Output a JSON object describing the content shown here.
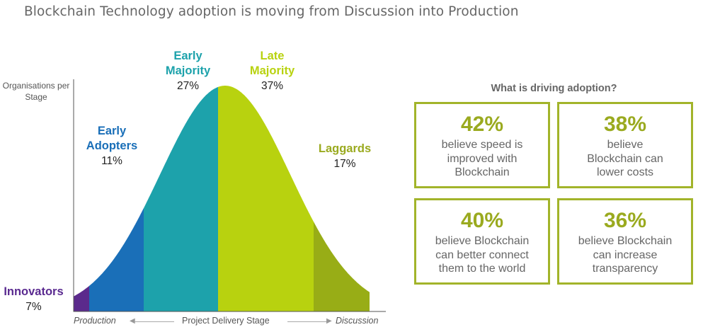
{
  "title": "Blockchain Technology adoption is moving from Discussion into Production",
  "chart_data": {
    "type": "area",
    "title": "Blockchain Technology adoption is moving from Discussion into Production",
    "ylabel": "Organisations per Stage",
    "xlabel": "Project Delivery Stage",
    "x_axis_ends": [
      "Production",
      "Discussion"
    ],
    "categories": [
      "Innovators",
      "Early Adopters",
      "Early Majority",
      "Late Majority",
      "Laggards"
    ],
    "values": [
      7,
      11,
      27,
      37,
      17
    ],
    "labels": [
      "7%",
      "11%",
      "27%",
      "37%",
      "17%"
    ],
    "colors": [
      "#5b2a8c",
      "#1a6fb8",
      "#1da2ab",
      "#b8d20f",
      "#98ad16"
    ],
    "stage_names": [
      [
        "Innovators"
      ],
      [
        "Early",
        "Adopters"
      ],
      [
        "Early",
        "Majority"
      ],
      [
        "Late",
        "Majority"
      ],
      [
        "Laggards"
      ]
    ],
    "name_colors": [
      "#5a2a90",
      "#1a6fb8",
      "#1da2ab",
      "#b8d20f",
      "#9aaa1f"
    ]
  },
  "drivers": {
    "title": "What is driving adoption?",
    "boxes": [
      {
        "value": "42%",
        "lines": [
          "believe speed is",
          "improved with",
          "Blockchain"
        ]
      },
      {
        "value": "38%",
        "lines": [
          "believe",
          "Blockchain can",
          "lower costs"
        ]
      },
      {
        "value": "40%",
        "lines": [
          "believe Blockchain",
          "can better connect",
          "them to the world"
        ]
      },
      {
        "value": "36%",
        "lines": [
          "believe Blockchain",
          "can increase",
          "transparency"
        ]
      }
    ]
  }
}
